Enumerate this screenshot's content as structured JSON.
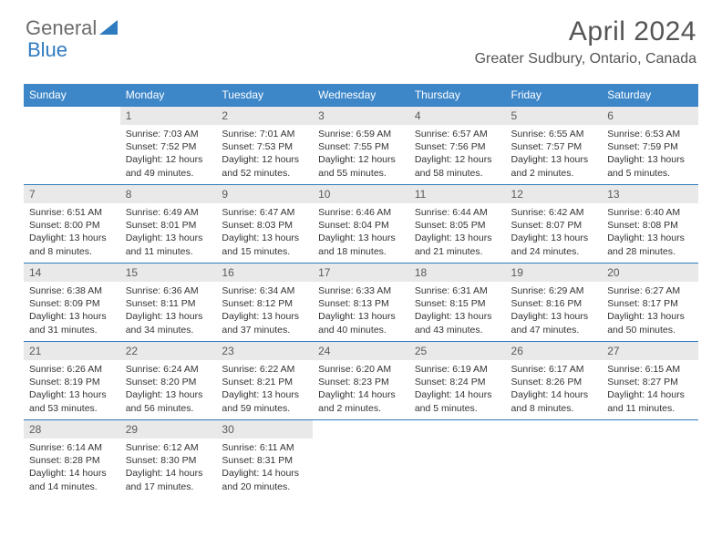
{
  "brand": {
    "part1": "General",
    "part2": "Blue"
  },
  "title": "April 2024",
  "location": "Greater Sudbury, Ontario, Canada",
  "colors": {
    "header_bg": "#3d87c9",
    "row_border": "#2f7bc0",
    "daynum_bg": "#e9e9e9",
    "text": "#333333"
  },
  "weekdays": [
    "Sunday",
    "Monday",
    "Tuesday",
    "Wednesday",
    "Thursday",
    "Friday",
    "Saturday"
  ],
  "weeks": [
    [
      null,
      {
        "n": "1",
        "sr": "Sunrise: 7:03 AM",
        "ss": "Sunset: 7:52 PM",
        "dl1": "Daylight: 12 hours",
        "dl2": "and 49 minutes."
      },
      {
        "n": "2",
        "sr": "Sunrise: 7:01 AM",
        "ss": "Sunset: 7:53 PM",
        "dl1": "Daylight: 12 hours",
        "dl2": "and 52 minutes."
      },
      {
        "n": "3",
        "sr": "Sunrise: 6:59 AM",
        "ss": "Sunset: 7:55 PM",
        "dl1": "Daylight: 12 hours",
        "dl2": "and 55 minutes."
      },
      {
        "n": "4",
        "sr": "Sunrise: 6:57 AM",
        "ss": "Sunset: 7:56 PM",
        "dl1": "Daylight: 12 hours",
        "dl2": "and 58 minutes."
      },
      {
        "n": "5",
        "sr": "Sunrise: 6:55 AM",
        "ss": "Sunset: 7:57 PM",
        "dl1": "Daylight: 13 hours",
        "dl2": "and 2 minutes."
      },
      {
        "n": "6",
        "sr": "Sunrise: 6:53 AM",
        "ss": "Sunset: 7:59 PM",
        "dl1": "Daylight: 13 hours",
        "dl2": "and 5 minutes."
      }
    ],
    [
      {
        "n": "7",
        "sr": "Sunrise: 6:51 AM",
        "ss": "Sunset: 8:00 PM",
        "dl1": "Daylight: 13 hours",
        "dl2": "and 8 minutes."
      },
      {
        "n": "8",
        "sr": "Sunrise: 6:49 AM",
        "ss": "Sunset: 8:01 PM",
        "dl1": "Daylight: 13 hours",
        "dl2": "and 11 minutes."
      },
      {
        "n": "9",
        "sr": "Sunrise: 6:47 AM",
        "ss": "Sunset: 8:03 PM",
        "dl1": "Daylight: 13 hours",
        "dl2": "and 15 minutes."
      },
      {
        "n": "10",
        "sr": "Sunrise: 6:46 AM",
        "ss": "Sunset: 8:04 PM",
        "dl1": "Daylight: 13 hours",
        "dl2": "and 18 minutes."
      },
      {
        "n": "11",
        "sr": "Sunrise: 6:44 AM",
        "ss": "Sunset: 8:05 PM",
        "dl1": "Daylight: 13 hours",
        "dl2": "and 21 minutes."
      },
      {
        "n": "12",
        "sr": "Sunrise: 6:42 AM",
        "ss": "Sunset: 8:07 PM",
        "dl1": "Daylight: 13 hours",
        "dl2": "and 24 minutes."
      },
      {
        "n": "13",
        "sr": "Sunrise: 6:40 AM",
        "ss": "Sunset: 8:08 PM",
        "dl1": "Daylight: 13 hours",
        "dl2": "and 28 minutes."
      }
    ],
    [
      {
        "n": "14",
        "sr": "Sunrise: 6:38 AM",
        "ss": "Sunset: 8:09 PM",
        "dl1": "Daylight: 13 hours",
        "dl2": "and 31 minutes."
      },
      {
        "n": "15",
        "sr": "Sunrise: 6:36 AM",
        "ss": "Sunset: 8:11 PM",
        "dl1": "Daylight: 13 hours",
        "dl2": "and 34 minutes."
      },
      {
        "n": "16",
        "sr": "Sunrise: 6:34 AM",
        "ss": "Sunset: 8:12 PM",
        "dl1": "Daylight: 13 hours",
        "dl2": "and 37 minutes."
      },
      {
        "n": "17",
        "sr": "Sunrise: 6:33 AM",
        "ss": "Sunset: 8:13 PM",
        "dl1": "Daylight: 13 hours",
        "dl2": "and 40 minutes."
      },
      {
        "n": "18",
        "sr": "Sunrise: 6:31 AM",
        "ss": "Sunset: 8:15 PM",
        "dl1": "Daylight: 13 hours",
        "dl2": "and 43 minutes."
      },
      {
        "n": "19",
        "sr": "Sunrise: 6:29 AM",
        "ss": "Sunset: 8:16 PM",
        "dl1": "Daylight: 13 hours",
        "dl2": "and 47 minutes."
      },
      {
        "n": "20",
        "sr": "Sunrise: 6:27 AM",
        "ss": "Sunset: 8:17 PM",
        "dl1": "Daylight: 13 hours",
        "dl2": "and 50 minutes."
      }
    ],
    [
      {
        "n": "21",
        "sr": "Sunrise: 6:26 AM",
        "ss": "Sunset: 8:19 PM",
        "dl1": "Daylight: 13 hours",
        "dl2": "and 53 minutes."
      },
      {
        "n": "22",
        "sr": "Sunrise: 6:24 AM",
        "ss": "Sunset: 8:20 PM",
        "dl1": "Daylight: 13 hours",
        "dl2": "and 56 minutes."
      },
      {
        "n": "23",
        "sr": "Sunrise: 6:22 AM",
        "ss": "Sunset: 8:21 PM",
        "dl1": "Daylight: 13 hours",
        "dl2": "and 59 minutes."
      },
      {
        "n": "24",
        "sr": "Sunrise: 6:20 AM",
        "ss": "Sunset: 8:23 PM",
        "dl1": "Daylight: 14 hours",
        "dl2": "and 2 minutes."
      },
      {
        "n": "25",
        "sr": "Sunrise: 6:19 AM",
        "ss": "Sunset: 8:24 PM",
        "dl1": "Daylight: 14 hours",
        "dl2": "and 5 minutes."
      },
      {
        "n": "26",
        "sr": "Sunrise: 6:17 AM",
        "ss": "Sunset: 8:26 PM",
        "dl1": "Daylight: 14 hours",
        "dl2": "and 8 minutes."
      },
      {
        "n": "27",
        "sr": "Sunrise: 6:15 AM",
        "ss": "Sunset: 8:27 PM",
        "dl1": "Daylight: 14 hours",
        "dl2": "and 11 minutes."
      }
    ],
    [
      {
        "n": "28",
        "sr": "Sunrise: 6:14 AM",
        "ss": "Sunset: 8:28 PM",
        "dl1": "Daylight: 14 hours",
        "dl2": "and 14 minutes."
      },
      {
        "n": "29",
        "sr": "Sunrise: 6:12 AM",
        "ss": "Sunset: 8:30 PM",
        "dl1": "Daylight: 14 hours",
        "dl2": "and 17 minutes."
      },
      {
        "n": "30",
        "sr": "Sunrise: 6:11 AM",
        "ss": "Sunset: 8:31 PM",
        "dl1": "Daylight: 14 hours",
        "dl2": "and 20 minutes."
      },
      null,
      null,
      null,
      null
    ]
  ]
}
